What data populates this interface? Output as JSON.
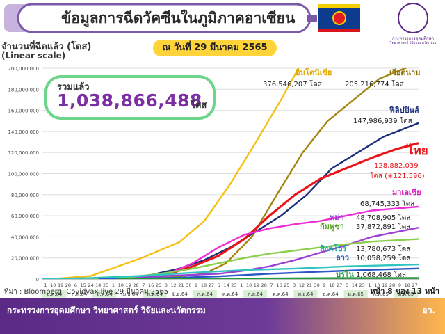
{
  "header": {
    "title": "ข้อมูลการฉีดวัคซีนในภูมิภาคอาเซียน",
    "date": "ณ วันที่ 29 มีนาคม 2565",
    "logo_line1": "กระทรวงการอุดมศึกษา",
    "logo_line2": "วิทยาศาสตร์ วิจัยและนวัตกรรม"
  },
  "total": {
    "label": "รวมแล้ว",
    "value": "1,038,866,488",
    "unit": "โดส"
  },
  "footer": {
    "source": "ที่มา : Bloomberg, Covidvax.live 29 มีนาคม 2565",
    "page": "หน้า 8 ของ 13 หน้า",
    "ministry": "กระทรวงการอุดมศึกษา วิทยาศาสตร์ วิจัยและนวัตกรรม",
    "short": "อว."
  },
  "colors": {
    "purple": "#5b2a86",
    "accent_yellow": "#ffd43b",
    "total_border": "#6dd58c",
    "total_value": "#7b2fa3"
  },
  "chart_data": {
    "type": "line",
    "ylabel": "จำนวนที่ฉีดแล้ว (โดส)",
    "yscale_note": "(Linear scale)",
    "ylim": [
      0,
      200000000
    ],
    "yticks": [
      "0",
      "20,000,000",
      "40,000,000",
      "60,000,000",
      "80,000,000",
      "100,000,000",
      "120,000,000",
      "140,000,000",
      "160,000,000",
      "180,000,000",
      "200,000,000"
    ],
    "x_day_labels": [
      "1",
      "10",
      "19",
      "28",
      "6",
      "15",
      "24",
      "14",
      "23",
      "1",
      "10",
      "19",
      "28",
      "7",
      "16",
      "25",
      "3",
      "12",
      "21",
      "30",
      "9",
      "18",
      "27",
      "5",
      "14",
      "23",
      "1",
      "10",
      "19",
      "28",
      "7",
      "16",
      "25",
      "3",
      "12",
      "21",
      "30",
      "9",
      "18",
      "27",
      "5",
      "14",
      "23",
      "1",
      "10",
      "19",
      "28",
      "9",
      "18",
      "27"
    ],
    "x_month_labels": [
      "ม.ค.64",
      "ก.พ.64",
      "มี.ค.64",
      "เม.ย.64",
      "พ.ค.64",
      "มิ.ย.64",
      "ก.ค.64",
      "ส.ค.64",
      "ก.ย.64",
      "ต.ค.64",
      "พ.ย.64",
      "ธ.ค.64",
      "ม.ค.65",
      "ก.พ.65",
      "มี.ค.65"
    ],
    "x_range": [
      "2021-01-01",
      "2022-03-29"
    ],
    "series": [
      {
        "name": "อินโดนีเซีย",
        "color": "#f5bf13",
        "label_color": "#e0a800",
        "value_text": "376,546,207 โดส",
        "points": [
          [
            "2021-01-13",
            0
          ],
          [
            "2021-03-01",
            3000000
          ],
          [
            "2021-05-01",
            20000000
          ],
          [
            "2021-06-15",
            35000000
          ],
          [
            "2021-07-15",
            55000000
          ],
          [
            "2021-08-15",
            90000000
          ],
          [
            "2021-09-15",
            130000000
          ],
          [
            "2021-10-15",
            170000000
          ],
          [
            "2021-11-05",
            200000000
          ]
        ]
      },
      {
        "name": "เวียดนาม",
        "color": "#a3860f",
        "label_color": "#8a6d00",
        "value_text": "205,216,774 โดส",
        "points": [
          [
            "2021-03-08",
            0
          ],
          [
            "2021-06-01",
            1500000
          ],
          [
            "2021-07-15",
            5000000
          ],
          [
            "2021-08-10",
            15000000
          ],
          [
            "2021-09-10",
            40000000
          ],
          [
            "2021-10-10",
            80000000
          ],
          [
            "2021-11-10",
            120000000
          ],
          [
            "2021-12-10",
            150000000
          ],
          [
            "2022-01-10",
            170000000
          ],
          [
            "2022-02-10",
            190000000
          ],
          [
            "2022-03-29",
            205216774
          ]
        ]
      },
      {
        "name": "ฟิลิปปินส์",
        "color": "#1c2e7a",
        "label_color": "#1c2e7a",
        "value_text": "147,986,939 โดส",
        "points": [
          [
            "2021-03-01",
            0
          ],
          [
            "2021-05-01",
            2000000
          ],
          [
            "2021-06-15",
            10000000
          ],
          [
            "2021-07-15",
            18000000
          ],
          [
            "2021-08-15",
            30000000
          ],
          [
            "2021-09-15",
            45000000
          ],
          [
            "2021-10-15",
            60000000
          ],
          [
            "2021-11-15",
            80000000
          ],
          [
            "2021-12-15",
            105000000
          ],
          [
            "2022-01-15",
            120000000
          ],
          [
            "2022-02-15",
            135000000
          ],
          [
            "2022-03-29",
            147986939
          ]
        ]
      },
      {
        "name": "ไทย",
        "color": "#e8161b",
        "label_color": "#e8161b",
        "value_text": "128,882,039",
        "value_text2": "โดส (+121,596)",
        "points": [
          [
            "2021-02-28",
            0
          ],
          [
            "2021-05-01",
            2000000
          ],
          [
            "2021-06-07",
            6000000
          ],
          [
            "2021-07-01",
            12000000
          ],
          [
            "2021-08-01",
            22000000
          ],
          [
            "2021-09-01",
            38000000
          ],
          [
            "2021-10-01",
            60000000
          ],
          [
            "2021-11-01",
            80000000
          ],
          [
            "2021-12-01",
            95000000
          ],
          [
            "2022-01-01",
            105000000
          ],
          [
            "2022-02-01",
            115000000
          ],
          [
            "2022-03-01",
            123000000
          ],
          [
            "2022-03-29",
            128882039
          ]
        ]
      },
      {
        "name": "มาเลเซีย",
        "color": "#f02bd8",
        "label_color": "#d61cbf",
        "value_text": "68,745,333 โดส",
        "points": [
          [
            "2021-02-24",
            0
          ],
          [
            "2021-05-01",
            2000000
          ],
          [
            "2021-06-01",
            5000000
          ],
          [
            "2021-07-01",
            15000000
          ],
          [
            "2021-08-01",
            30000000
          ],
          [
            "2021-09-01",
            42000000
          ],
          [
            "2021-10-01",
            48000000
          ],
          [
            "2021-11-01",
            52000000
          ],
          [
            "2021-12-01",
            55000000
          ],
          [
            "2022-01-01",
            60000000
          ],
          [
            "2022-02-01",
            65000000
          ],
          [
            "2022-03-29",
            68745333
          ]
        ]
      },
      {
        "name": "พม่า",
        "color": "#9b3fd6",
        "label_color": "#9b3fd6",
        "value_text": "48,708,905 โดส",
        "points": [
          [
            "2021-01-27",
            0
          ],
          [
            "2021-06-01",
            3000000
          ],
          [
            "2021-08-01",
            5000000
          ],
          [
            "2021-09-01",
            8000000
          ],
          [
            "2021-10-01",
            12000000
          ],
          [
            "2021-11-01",
            18000000
          ],
          [
            "2021-12-01",
            25000000
          ],
          [
            "2022-01-01",
            32000000
          ],
          [
            "2022-02-01",
            40000000
          ],
          [
            "2022-03-29",
            48708905
          ]
        ]
      },
      {
        "name": "กัมพูชา",
        "color": "#8ccf4a",
        "label_color": "#5aa52a",
        "value_text": "37,872,891 โดส",
        "points": [
          [
            "2021-02-10",
            0
          ],
          [
            "2021-04-01",
            1000000
          ],
          [
            "2021-05-01",
            3000000
          ],
          [
            "2021-06-01",
            6000000
          ],
          [
            "2021-07-01",
            10000000
          ],
          [
            "2021-08-01",
            15000000
          ],
          [
            "2021-09-01",
            20000000
          ],
          [
            "2021-10-01",
            24000000
          ],
          [
            "2021-11-01",
            27000000
          ],
          [
            "2021-12-01",
            30000000
          ],
          [
            "2022-01-01",
            33000000
          ],
          [
            "2022-02-01",
            35500000
          ],
          [
            "2022-03-29",
            37872891
          ]
        ]
      },
      {
        "name": "สิงคโปร์",
        "color": "#2ec4c0",
        "label_color": "#1aa8a4",
        "value_text": "13,780,673 โดส",
        "points": [
          [
            "2021-01-01",
            0
          ],
          [
            "2021-03-01",
            1000000
          ],
          [
            "2021-05-01",
            3000000
          ],
          [
            "2021-07-01",
            6000000
          ],
          [
            "2021-09-01",
            8500000
          ],
          [
            "2021-11-01",
            10000000
          ],
          [
            "2022-01-01",
            12000000
          ],
          [
            "2022-03-29",
            13780673
          ]
        ]
      },
      {
        "name": "ลาว",
        "color": "#2a58c9",
        "label_color": "#2a58c9",
        "value_text": "10,058,259 โดส",
        "points": [
          [
            "2021-03-10",
            0
          ],
          [
            "2021-06-01",
            1000000
          ],
          [
            "2021-08-01",
            2500000
          ],
          [
            "2021-10-01",
            5000000
          ],
          [
            "2021-12-01",
            7000000
          ],
          [
            "2022-02-01",
            8800000
          ],
          [
            "2022-03-29",
            10058259
          ]
        ]
      },
      {
        "name": "บรูไน",
        "color": "#1e9b3a",
        "label_color": "#1e9b3a",
        "value_text": "1,068,468 โดส",
        "points": [
          [
            "2021-04-01",
            0
          ],
          [
            "2021-07-01",
            200000
          ],
          [
            "2021-10-01",
            600000
          ],
          [
            "2022-01-01",
            900000
          ],
          [
            "2022-03-29",
            1068468
          ]
        ]
      }
    ]
  }
}
